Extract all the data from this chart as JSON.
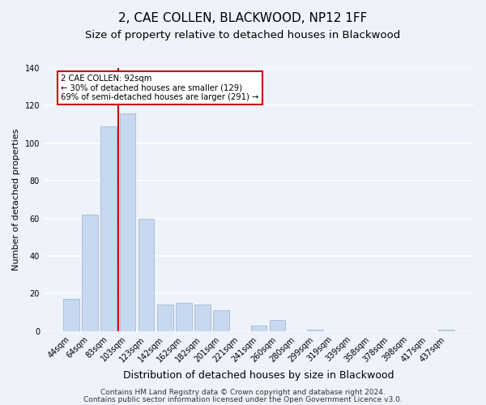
{
  "title": "2, CAE COLLEN, BLACKWOOD, NP12 1FF",
  "subtitle": "Size of property relative to detached houses in Blackwood",
  "xlabel": "Distribution of detached houses by size in Blackwood",
  "ylabel": "Number of detached properties",
  "bar_labels": [
    "44sqm",
    "64sqm",
    "83sqm",
    "103sqm",
    "123sqm",
    "142sqm",
    "162sqm",
    "182sqm",
    "201sqm",
    "221sqm",
    "241sqm",
    "260sqm",
    "280sqm",
    "299sqm",
    "319sqm",
    "339sqm",
    "358sqm",
    "378sqm",
    "398sqm",
    "417sqm",
    "437sqm"
  ],
  "bar_values": [
    17,
    62,
    109,
    116,
    60,
    14,
    15,
    14,
    11,
    0,
    3,
    6,
    0,
    1,
    0,
    0,
    0,
    0,
    0,
    0,
    1
  ],
  "bar_color": "#c8d8ee",
  "bar_edge_color": "#a0bcd8",
  "red_line_x": 2.5,
  "ylim": [
    0,
    140
  ],
  "yticks": [
    0,
    20,
    40,
    60,
    80,
    100,
    120,
    140
  ],
  "annotation_title": "2 CAE COLLEN: 92sqm",
  "annotation_line1": "← 30% of detached houses are smaller (129)",
  "annotation_line2": "69% of semi-detached houses are larger (291) →",
  "annotation_box_color": "#ffffff",
  "annotation_box_edge": "#cc0000",
  "red_line_color": "#cc0000",
  "footer_line1": "Contains HM Land Registry data © Crown copyright and database right 2024.",
  "footer_line2": "Contains public sector information licensed under the Open Government Licence v3.0.",
  "background_color": "#eef2fa",
  "plot_background": "#eef2fa",
  "grid_color": "#ffffff",
  "title_fontsize": 11,
  "subtitle_fontsize": 9.5,
  "xlabel_fontsize": 9,
  "ylabel_fontsize": 8,
  "tick_fontsize": 7,
  "footer_fontsize": 6.5
}
